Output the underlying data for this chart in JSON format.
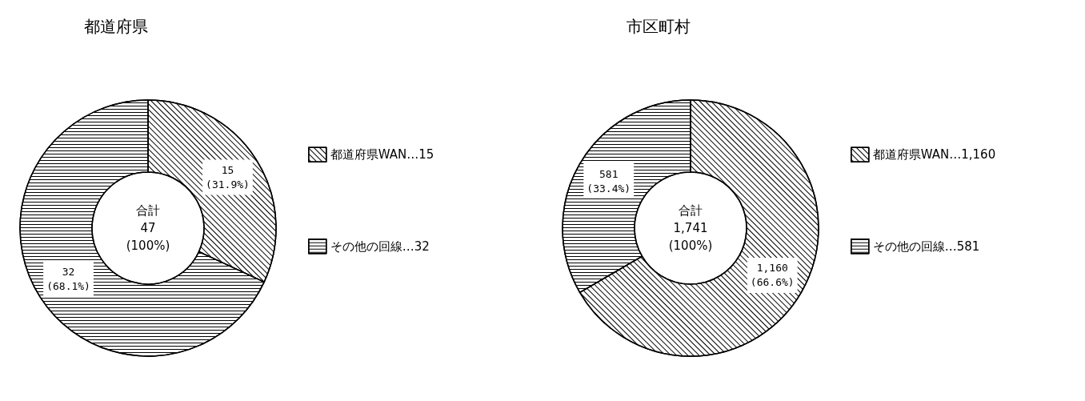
{
  "chart_data": [
    {
      "type": "donut",
      "title": "都道府県",
      "categories": [
        "都道府県WAN…15",
        "その他の回線…32"
      ],
      "values": [
        15,
        32
      ],
      "colors": [
        "#ffffff",
        "#ffffff"
      ],
      "value_labels": [
        "15\n(31.9%)",
        "32\n(68.1%)"
      ],
      "annotations": [
        "合計\n47\n(100%)"
      ],
      "legend": "right"
    },
    {
      "type": "donut",
      "title": "市区町村",
      "categories": [
        "都道府県WAN…1,160",
        "その他の回線…581"
      ],
      "values": [
        1160,
        581
      ],
      "colors": [
        "#ffffff",
        "#ffffff"
      ],
      "value_labels": [
        "1,160\n(66.6%)",
        "581\n(33.4%)"
      ],
      "annotations": [
        "合計\n1,741\n(100%)"
      ],
      "legend": "right"
    }
  ]
}
